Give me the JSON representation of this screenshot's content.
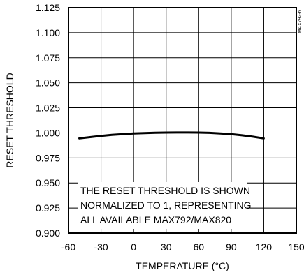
{
  "chart_data": {
    "type": "line",
    "xlabel": "TEMPERATURE (°C)",
    "ylabel": "RESET THRESHOLD",
    "xlim": [
      -60,
      150
    ],
    "ylim": [
      0.9,
      1.125
    ],
    "x_ticks": [
      -60,
      -30,
      0,
      30,
      60,
      90,
      120,
      150
    ],
    "x_tick_labels": [
      "-60",
      "-30",
      "0",
      "30",
      "60",
      "90",
      "120",
      "150"
    ],
    "y_ticks": [
      0.9,
      0.925,
      0.95,
      0.975,
      1.0,
      1.025,
      1.05,
      1.075,
      1.1,
      1.125
    ],
    "y_tick_labels": [
      "0.900",
      "0.925",
      "0.950",
      "0.975",
      "1.000",
      "1.025",
      "1.050",
      "1.075",
      "1.100",
      "1.125"
    ],
    "grid": true,
    "series": [
      {
        "x": [
          -50,
          -40,
          -30,
          -20,
          -10,
          0,
          10,
          20,
          30,
          40,
          50,
          60,
          70,
          80,
          90,
          100,
          110,
          120
        ],
        "y": [
          0.9945,
          0.9958,
          0.997,
          0.998,
          0.9988,
          0.9994,
          0.9998,
          1.0001,
          1.0003,
          1.0004,
          1.0004,
          1.0003,
          1.0,
          0.9995,
          0.9987,
          0.9976,
          0.9962,
          0.9945
        ]
      }
    ],
    "annotation": {
      "lines": [
        "THE RESET THRESHOLD IS SHOWN",
        "NORMALIZED TO 1, REPRESENTING",
        "ALL AVAILABLE MAX792/MAX820"
      ]
    },
    "side_code": "MAX792-6"
  }
}
